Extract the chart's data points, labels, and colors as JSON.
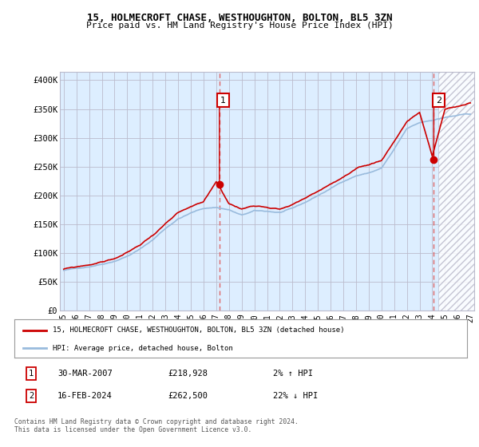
{
  "title": "15, HOLMECROFT CHASE, WESTHOUGHTON, BOLTON, BL5 3ZN",
  "subtitle": "Price paid vs. HM Land Registry's House Price Index (HPI)",
  "ylabel_ticks": [
    "£0",
    "£50K",
    "£100K",
    "£150K",
    "£200K",
    "£250K",
    "£300K",
    "£350K",
    "£400K"
  ],
  "ytick_values": [
    0,
    50000,
    100000,
    150000,
    200000,
    250000,
    300000,
    350000,
    400000
  ],
  "ylim": [
    0,
    415000
  ],
  "house_color": "#cc0000",
  "hpi_color": "#99bbdd",
  "vline_color": "#dd6666",
  "chart_bg": "#ddeeff",
  "annotation1": {
    "x_year": 2007.25,
    "price": 218928,
    "label": "1"
  },
  "annotation2": {
    "x_year": 2024.12,
    "price": 262500,
    "label": "2"
  },
  "legend1": "15, HOLMECROFT CHASE, WESTHOUGHTON, BOLTON, BL5 3ZN (detached house)",
  "legend2": "HPI: Average price, detached house, Bolton",
  "table_row1": [
    "1",
    "30-MAR-2007",
    "£218,928",
    "2% ↑ HPI"
  ],
  "table_row2": [
    "2",
    "16-FEB-2024",
    "£262,500",
    "22% ↓ HPI"
  ],
  "footnote": "Contains HM Land Registry data © Crown copyright and database right 2024.\nThis data is licensed under the Open Government Licence v3.0.",
  "xmin": 1994.7,
  "xmax": 2027.3,
  "hatch_start": 2024.5,
  "bg_color": "#ffffff",
  "grid_color": "#bbbbcc"
}
